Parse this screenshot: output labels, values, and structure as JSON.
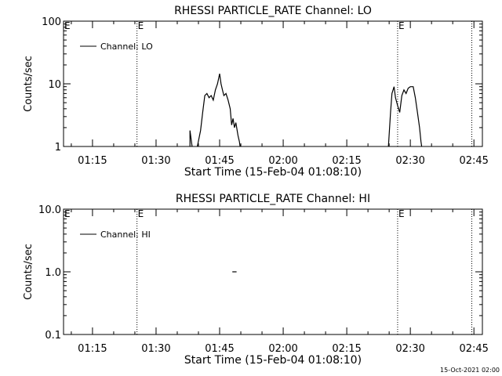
{
  "chart_data": [
    {
      "type": "line",
      "title": "RHESSI PARTICLE_RATE Channel: LO",
      "xlabel": "Start Time (15-Feb-04 01:08:10)",
      "ylabel": "Counts/sec",
      "yscale": "log",
      "ylim": [
        1,
        100
      ],
      "yticks": [
        1,
        10,
        100
      ],
      "ytick_labels": [
        "1",
        "10",
        "100"
      ],
      "xlim": [
        "01:08:10",
        "02:47:00"
      ],
      "xticks": [
        "01:15",
        "01:30",
        "01:45",
        "02:00",
        "02:15",
        "02:30",
        "02:45"
      ],
      "legend": {
        "label": "Channel: LO",
        "placement": "top-left"
      },
      "event_lines": [
        {
          "time": "01:25:30",
          "label": "E"
        },
        {
          "time": "02:27:00",
          "label": "E"
        },
        {
          "time": "02:44:30",
          "label": ""
        }
      ],
      "series": [
        {
          "segments": [
            [
              [
                "01:38:00",
                1.0
              ],
              [
                "01:38:00",
                1.8
              ],
              [
                "01:38:30",
                1.0
              ]
            ],
            [
              [
                "01:39:45",
                1.0
              ],
              [
                "01:40:30",
                1.8
              ],
              [
                "01:41:00",
                3.5
              ],
              [
                "01:41:30",
                6.5
              ],
              [
                "01:42:00",
                7.0
              ],
              [
                "01:42:30",
                6.0
              ],
              [
                "01:43:00",
                6.5
              ],
              [
                "01:43:30",
                5.5
              ],
              [
                "01:44:00",
                8.0
              ],
              [
                "01:44:30",
                10.0
              ],
              [
                "01:45:00",
                14.5
              ],
              [
                "01:45:20",
                10.0
              ],
              [
                "01:45:40",
                8.0
              ],
              [
                "01:46:00",
                6.5
              ],
              [
                "01:46:30",
                7.0
              ],
              [
                "01:47:00",
                5.5
              ],
              [
                "01:47:30",
                4.0
              ],
              [
                "01:47:50",
                2.2
              ],
              [
                "01:48:10",
                2.8
              ],
              [
                "01:48:30",
                2.0
              ],
              [
                "01:48:50",
                2.4
              ],
              [
                "01:49:20",
                1.5
              ],
              [
                "01:49:40",
                1.2
              ],
              [
                "01:49:50",
                1.0
              ]
            ],
            [
              [
                "02:24:50",
                1.0
              ],
              [
                "02:25:20",
                3.5
              ],
              [
                "02:25:40",
                7.0
              ],
              [
                "02:26:10",
                9.0
              ],
              [
                "02:26:30",
                6.0
              ],
              [
                "02:27:00",
                4.5
              ],
              [
                "02:27:30",
                3.5
              ],
              [
                "02:28:00",
                6.5
              ],
              [
                "02:28:30",
                8.0
              ],
              [
                "02:29:00",
                7.0
              ],
              [
                "02:29:30",
                8.5
              ],
              [
                "02:30:00",
                9.0
              ],
              [
                "02:30:40",
                9.0
              ],
              [
                "02:31:10",
                6.0
              ],
              [
                "02:31:40",
                3.5
              ],
              [
                "02:32:10",
                2.0
              ],
              [
                "02:32:30",
                1.2
              ],
              [
                "02:32:40",
                1.0
              ]
            ]
          ]
        }
      ]
    },
    {
      "type": "line",
      "title": "RHESSI PARTICLE_RATE Channel: HI",
      "xlabel": "Start Time (15-Feb-04 01:08:10)",
      "ylabel": "Counts/sec",
      "yscale": "log",
      "ylim": [
        0.1,
        10
      ],
      "yticks": [
        0.1,
        1,
        10
      ],
      "ytick_labels": [
        "0.1",
        "1.0",
        "10.0"
      ],
      "xlim": [
        "01:08:10",
        "02:47:00"
      ],
      "xticks": [
        "01:15",
        "01:30",
        "01:45",
        "02:00",
        "02:15",
        "02:30",
        "02:45"
      ],
      "legend": {
        "label": "Channel: HI",
        "placement": "top-left"
      },
      "event_lines": [
        {
          "time": "01:25:30",
          "label": "E"
        },
        {
          "time": "02:27:00",
          "label": "E"
        },
        {
          "time": "02:44:30",
          "label": ""
        }
      ],
      "series": [
        {
          "segments": [
            [
              [
                "01:48:00",
                1.0
              ],
              [
                "01:49:00",
                1.0
              ]
            ]
          ]
        }
      ]
    }
  ],
  "footer": {
    "date_stamp": "15-Oct-2021 02:00"
  }
}
